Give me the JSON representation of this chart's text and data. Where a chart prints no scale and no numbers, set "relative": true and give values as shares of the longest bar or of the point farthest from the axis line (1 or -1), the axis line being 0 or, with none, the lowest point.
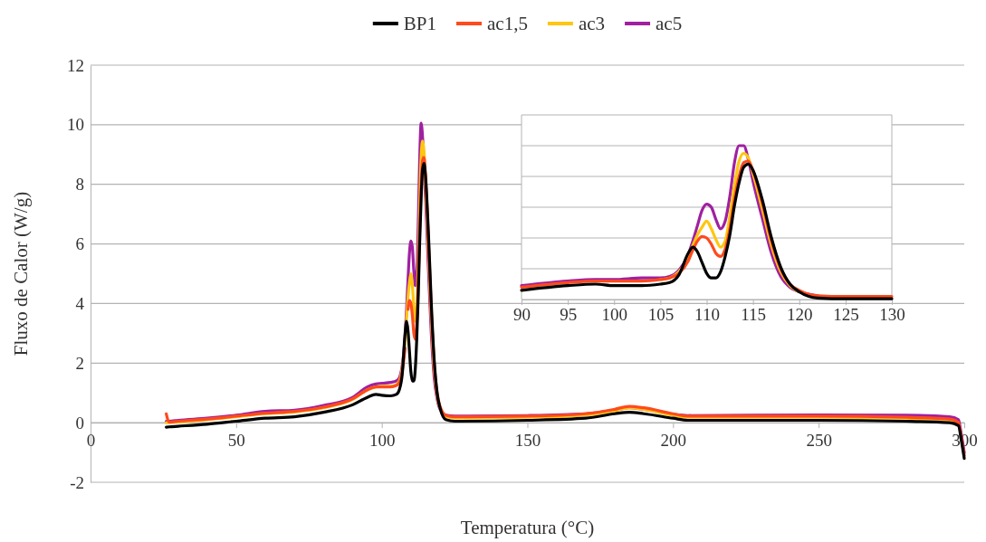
{
  "chart_data": [
    {
      "type": "line",
      "xlabel": "Temperatura (°C)",
      "ylabel": "Fluxo de Calor (W/g)",
      "xlim": [
        0,
        300
      ],
      "xticks": [
        0,
        50,
        100,
        150,
        200,
        250,
        300
      ],
      "ylim": [
        -2,
        12
      ],
      "yticks": [
        -2,
        0,
        2,
        4,
        6,
        8,
        10,
        12
      ],
      "grid": "y",
      "legend": "top",
      "line_style": "solid",
      "marker": "none",
      "x": [
        26,
        27,
        30,
        40,
        50,
        60,
        70,
        80,
        90,
        95,
        98,
        100,
        103,
        105,
        106,
        107,
        108,
        108.5,
        109,
        109.5,
        110,
        110.5,
        111,
        111.5,
        112,
        112.5,
        113,
        113.5,
        114,
        114.5,
        115,
        116,
        117,
        118,
        119,
        120,
        122,
        125,
        150,
        170,
        180,
        185,
        190,
        200,
        205,
        250,
        280,
        295,
        298,
        299,
        300
      ],
      "series": [
        {
          "name": "BP1",
          "color": "#000000",
          "values": [
            -0.15,
            -0.14,
            -0.12,
            -0.05,
            0.05,
            0.15,
            0.2,
            0.35,
            0.6,
            0.85,
            0.95,
            0.92,
            0.9,
            0.95,
            1.1,
            1.6,
            3.0,
            3.4,
            3.1,
            2.4,
            1.7,
            1.4,
            1.4,
            1.8,
            2.8,
            4.2,
            6.0,
            7.5,
            8.5,
            8.7,
            8.3,
            6.4,
            4.0,
            2.1,
            1.0,
            0.5,
            0.1,
            0.05,
            0.08,
            0.15,
            0.3,
            0.35,
            0.3,
            0.15,
            0.08,
            0.08,
            0.05,
            0.0,
            -0.1,
            -0.6,
            -1.2
          ]
        },
        {
          "name": "ac1,5",
          "color": "#ff4a1c",
          "values": [
            0.3,
            0.02,
            0.05,
            0.12,
            0.22,
            0.32,
            0.38,
            0.52,
            0.8,
            1.1,
            1.2,
            1.2,
            1.2,
            1.25,
            1.35,
            1.7,
            2.5,
            null,
            3.8,
            4.1,
            4.0,
            3.6,
            3.0,
            2.8,
            3.3,
            4.6,
            6.4,
            7.9,
            8.8,
            8.9,
            8.3,
            6.2,
            3.8,
            2.0,
            1.0,
            0.55,
            0.25,
            0.2,
            0.22,
            0.3,
            0.45,
            0.55,
            0.5,
            0.3,
            0.22,
            0.22,
            0.18,
            0.12,
            0.0,
            -0.5,
            -1.1
          ]
        },
        {
          "name": "ac3",
          "color": "#ffc610",
          "values": [
            0.0,
            0.0,
            0.02,
            0.1,
            0.2,
            0.3,
            0.36,
            0.5,
            0.78,
            1.1,
            1.2,
            1.22,
            1.22,
            1.28,
            1.4,
            1.8,
            2.7,
            3.5,
            4.2,
            4.7,
            5.0,
            4.6,
            3.9,
            3.4,
            3.8,
            5.3,
            7.3,
            8.9,
            9.45,
            9.1,
            8.1,
            5.8,
            3.5,
            1.8,
            0.9,
            0.5,
            0.2,
            0.16,
            0.18,
            0.26,
            0.4,
            0.5,
            0.45,
            0.25,
            0.18,
            0.18,
            0.15,
            0.1,
            0.0,
            null,
            null
          ]
        },
        {
          "name": "ac5",
          "color": "#a020a0",
          "values": [
            0.05,
            0.05,
            0.08,
            0.15,
            0.25,
            0.38,
            0.42,
            0.58,
            0.85,
            1.2,
            1.3,
            1.32,
            1.35,
            1.4,
            1.5,
            1.9,
            2.9,
            3.8,
            4.8,
            5.7,
            6.1,
            5.9,
            5.1,
            4.6,
            5.0,
            6.6,
            8.8,
            10.05,
            9.6,
            8.6,
            7.6,
            5.2,
            3.0,
            1.5,
            0.8,
            0.45,
            0.25,
            0.22,
            0.24,
            0.3,
            0.42,
            0.5,
            0.45,
            0.28,
            0.24,
            0.26,
            0.25,
            0.2,
            0.1,
            -0.4,
            -1.0
          ]
        }
      ]
    },
    {
      "type": "line",
      "xlim": [
        90,
        130
      ],
      "xticks": [
        90,
        95,
        100,
        105,
        110,
        115,
        120,
        125,
        130
      ],
      "relative": true,
      "grid": "y",
      "line_style": "solid",
      "marker": "none",
      "x": [
        90,
        95,
        98,
        100,
        103,
        105,
        106,
        107,
        108,
        108.5,
        109,
        109.5,
        110,
        110.5,
        111,
        111.5,
        112,
        112.5,
        113,
        113.5,
        114,
        114.5,
        115,
        116,
        117,
        118,
        119,
        120,
        122,
        125,
        130
      ],
      "series": [
        {
          "color": "#000000",
          "values": [
            0.06,
            0.09,
            0.1,
            0.09,
            0.09,
            0.1,
            0.11,
            0.16,
            0.3,
            0.34,
            0.31,
            0.24,
            0.17,
            0.14,
            0.14,
            0.18,
            0.28,
            0.42,
            0.61,
            0.76,
            0.86,
            0.88,
            0.84,
            0.65,
            0.4,
            0.21,
            0.1,
            0.05,
            0.01,
            0.005,
            0.005
          ]
        },
        {
          "color": "#ff4a1c",
          "values": [
            0.08,
            0.11,
            0.12,
            0.12,
            0.12,
            0.13,
            0.14,
            0.17,
            0.25,
            0.32,
            0.38,
            0.41,
            0.4,
            0.36,
            0.3,
            0.28,
            0.33,
            0.46,
            0.65,
            0.8,
            0.89,
            0.9,
            0.84,
            0.63,
            0.38,
            0.2,
            0.1,
            0.06,
            0.025,
            0.02,
            0.02
          ]
        },
        {
          "color": "#ffc610",
          "values": [
            null,
            null,
            null,
            null,
            null,
            0.13,
            0.14,
            0.18,
            0.27,
            0.35,
            0.42,
            0.47,
            0.51,
            0.46,
            0.39,
            0.34,
            0.38,
            0.54,
            0.74,
            0.9,
            0.95,
            0.92,
            0.82,
            0.59,
            0.35,
            0.18,
            0.09,
            0.05,
            null,
            null,
            null
          ]
        },
        {
          "color": "#a020a0",
          "values": [
            0.09,
            0.12,
            0.13,
            0.13,
            0.14,
            0.14,
            0.15,
            0.19,
            0.29,
            0.38,
            0.48,
            0.58,
            0.62,
            0.6,
            0.52,
            0.46,
            0.51,
            0.67,
            0.89,
            1,
            1,
            0.91,
            0.77,
            0.53,
            0.3,
            0.15,
            0.08,
            0.05,
            0.025,
            null,
            null
          ]
        }
      ]
    }
  ]
}
